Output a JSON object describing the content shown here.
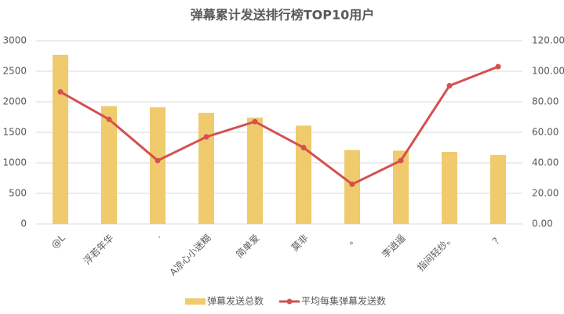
{
  "chart_data": {
    "type": "bar",
    "title": "弹幕累计发送排行榜TOP10用户",
    "categories": [
      "@L",
      "浮若年华",
      "·",
      "A凉心小迷糊",
      "简单爱",
      "莫非",
      "。",
      "李逍遥",
      "指间轻纱。",
      "？"
    ],
    "series": [
      {
        "name": "弹幕发送总数",
        "type": "bar",
        "color": "#efcb6e",
        "values": [
          2770,
          1930,
          1910,
          1820,
          1740,
          1610,
          1210,
          1200,
          1180,
          1130
        ]
      },
      {
        "name": "平均每集弹幕发送数",
        "type": "line",
        "axis": "y2",
        "color": "#d5504f",
        "values": [
          86.5,
          68.5,
          41.5,
          57,
          67,
          50,
          26,
          41.5,
          90.5,
          103
        ]
      }
    ],
    "ylim": [
      0,
      3000
    ],
    "yticks": [
      0,
      500,
      1000,
      1500,
      2000,
      2500,
      3000
    ],
    "y2lim": [
      0,
      120
    ],
    "y2ticks": [
      {
        "value": 0,
        "label": "0.00"
      },
      {
        "value": 20,
        "label": "20.00"
      },
      {
        "value": 40,
        "label": "40.00"
      },
      {
        "value": 60,
        "label": "60.00"
      },
      {
        "value": 80,
        "label": "80.00"
      },
      {
        "value": 100,
        "label": "100.00"
      },
      {
        "value": 120,
        "label": "120.00"
      }
    ],
    "grid": true,
    "legend": "bottom"
  }
}
